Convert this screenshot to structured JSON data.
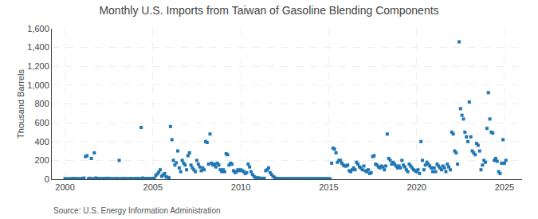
{
  "chart_data": {
    "type": "scatter",
    "title": "Monthly U.S. Imports from Taiwan of Gasoline Blending Components",
    "ylabel": "Thousand Barrels",
    "annotations": [
      "Source: U.S. Energy Information Administration"
    ],
    "marker": "square",
    "grid": true,
    "xlim": [
      1999.25,
      2026.0
    ],
    "xticks": [
      2000,
      2005,
      2010,
      2015,
      2020,
      2025
    ],
    "ylim": [
      0,
      1600
    ],
    "yticks": [
      0,
      200,
      400,
      600,
      800,
      {
        "value": 1000,
        "label": "1,000"
      },
      {
        "value": 1200,
        "label": "1,200"
      },
      {
        "value": 1400,
        "label": "1,400"
      },
      {
        "value": 1600,
        "label": "1,600"
      }
    ],
    "x": [
      2000.0,
      2000.083,
      2000.167,
      2000.25,
      2000.333,
      2000.417,
      2000.5,
      2000.583,
      2000.667,
      2000.75,
      2000.833,
      2000.917,
      2001.0,
      2001.083,
      2001.167,
      2001.25,
      2001.333,
      2001.417,
      2001.5,
      2001.583,
      2001.667,
      2001.75,
      2001.833,
      2001.917,
      2002.0,
      2002.083,
      2002.167,
      2002.25,
      2002.333,
      2002.417,
      2002.5,
      2002.583,
      2002.667,
      2002.75,
      2002.833,
      2002.917,
      2003.0,
      2003.083,
      2003.167,
      2003.25,
      2003.333,
      2003.417,
      2003.5,
      2003.583,
      2003.667,
      2003.75,
      2003.833,
      2003.917,
      2004.0,
      2004.083,
      2004.167,
      2004.25,
      2004.333,
      2004.417,
      2004.5,
      2004.583,
      2004.667,
      2004.75,
      2004.833,
      2004.917,
      2005.0,
      2005.083,
      2005.167,
      2005.25,
      2005.333,
      2005.417,
      2005.5,
      2005.583,
      2005.667,
      2005.75,
      2005.833,
      2005.917,
      2006.0,
      2006.083,
      2006.167,
      2006.25,
      2006.333,
      2006.417,
      2006.5,
      2006.583,
      2006.667,
      2006.75,
      2006.833,
      2006.917,
      2007.0,
      2007.083,
      2007.167,
      2007.25,
      2007.333,
      2007.417,
      2007.5,
      2007.583,
      2007.667,
      2007.75,
      2007.833,
      2007.917,
      2008.0,
      2008.083,
      2008.167,
      2008.25,
      2008.333,
      2008.417,
      2008.5,
      2008.583,
      2008.667,
      2008.75,
      2008.833,
      2008.917,
      2009.0,
      2009.083,
      2009.167,
      2009.25,
      2009.333,
      2009.417,
      2009.5,
      2009.583,
      2009.667,
      2009.75,
      2009.833,
      2009.917,
      2010.0,
      2010.083,
      2010.167,
      2010.25,
      2010.333,
      2010.417,
      2010.5,
      2010.583,
      2010.667,
      2010.75,
      2010.833,
      2010.917,
      2011.0,
      2011.083,
      2011.167,
      2011.25,
      2011.333,
      2011.417,
      2011.5,
      2011.583,
      2011.667,
      2011.75,
      2011.833,
      2011.917,
      2012.0,
      2012.083,
      2012.167,
      2012.25,
      2012.333,
      2012.417,
      2012.5,
      2012.583,
      2012.667,
      2012.75,
      2012.833,
      2012.917,
      2013.0,
      2013.083,
      2013.167,
      2013.25,
      2013.333,
      2013.417,
      2013.5,
      2013.583,
      2013.667,
      2013.75,
      2013.833,
      2013.917,
      2014.0,
      2014.083,
      2014.167,
      2014.25,
      2014.333,
      2014.417,
      2014.5,
      2014.583,
      2014.667,
      2014.75,
      2014.833,
      2014.917,
      2015.0,
      2015.083,
      2015.167,
      2015.25,
      2015.333,
      2015.417,
      2015.5,
      2015.583,
      2015.667,
      2015.75,
      2015.833,
      2015.917,
      2016.0,
      2016.083,
      2016.167,
      2016.25,
      2016.333,
      2016.417,
      2016.5,
      2016.583,
      2016.667,
      2016.75,
      2016.833,
      2016.917,
      2017.0,
      2017.083,
      2017.167,
      2017.25,
      2017.333,
      2017.417,
      2017.5,
      2017.583,
      2017.667,
      2017.75,
      2017.833,
      2017.917,
      2018.0,
      2018.083,
      2018.167,
      2018.25,
      2018.333,
      2018.417,
      2018.5,
      2018.583,
      2018.667,
      2018.75,
      2018.833,
      2018.917,
      2019.0,
      2019.083,
      2019.167,
      2019.25,
      2019.333,
      2019.417,
      2019.5,
      2019.583,
      2019.667,
      2019.75,
      2019.833,
      2019.917,
      2020.0,
      2020.083,
      2020.167,
      2020.25,
      2020.333,
      2020.417,
      2020.5,
      2020.583,
      2020.667,
      2020.75,
      2020.833,
      2020.917,
      2021.0,
      2021.083,
      2021.167,
      2021.25,
      2021.333,
      2021.417,
      2021.5,
      2021.583,
      2021.667,
      2021.75,
      2021.833,
      2021.917,
      2022.0,
      2022.083,
      2022.167,
      2022.25,
      2022.333,
      2022.417,
      2022.5,
      2022.583,
      2022.667,
      2022.75,
      2022.833,
      2022.917,
      2023.0,
      2023.083,
      2023.167,
      2023.25,
      2023.333,
      2023.417,
      2023.5,
      2023.583,
      2023.667,
      2023.75,
      2023.833,
      2023.917,
      2024.0,
      2024.083,
      2024.167,
      2024.25,
      2024.333,
      2024.417,
      2024.5,
      2024.583,
      2024.667,
      2024.75,
      2024.833,
      2024.917,
      2025.0,
      2025.083
    ],
    "values": [
      5,
      3,
      4,
      2,
      5,
      3,
      8,
      4,
      6,
      3,
      5,
      4,
      8,
      12,
      240,
      250,
      6,
      10,
      220,
      6,
      280,
      12,
      6,
      8,
      4,
      5,
      6,
      8,
      5,
      10,
      8,
      6,
      5,
      4,
      6,
      5,
      8,
      200,
      6,
      5,
      8,
      6,
      5,
      4,
      6,
      8,
      5,
      6,
      5,
      6,
      8,
      6,
      550,
      12,
      8,
      6,
      5,
      8,
      6,
      5,
      8,
      10,
      40,
      55,
      75,
      100,
      30,
      45,
      60,
      25,
      20,
      15,
      560,
      420,
      200,
      150,
      175,
      300,
      120,
      80,
      200,
      170,
      150,
      100,
      250,
      280,
      150,
      120,
      100,
      80,
      200,
      160,
      130,
      90,
      120,
      100,
      400,
      390,
      160,
      480,
      170,
      150,
      160,
      130,
      170,
      150,
      100,
      80,
      100,
      80,
      270,
      260,
      150,
      170,
      160,
      90,
      70,
      80,
      100,
      90,
      100,
      90,
      80,
      60,
      70,
      160,
      130,
      80,
      50,
      30,
      20,
      10,
      15,
      8,
      10,
      5,
      10,
      90,
      100,
      120,
      70,
      50,
      30,
      20,
      5,
      8,
      6,
      5,
      4,
      6,
      5,
      4,
      6,
      5,
      4,
      5,
      4,
      6,
      5,
      4,
      6,
      5,
      4,
      6,
      5,
      4,
      6,
      5,
      6,
      5,
      4,
      6,
      5,
      4,
      6,
      5,
      4,
      6,
      5,
      4,
      5,
      3,
      170,
      330,
      320,
      280,
      180,
      200,
      200,
      170,
      150,
      140,
      140,
      150,
      90,
      80,
      100,
      120,
      100,
      180,
      160,
      130,
      120,
      100,
      140,
      90,
      80,
      100,
      60,
      70,
      240,
      250,
      160,
      150,
      130,
      120,
      140,
      130,
      100,
      140,
      480,
      220,
      200,
      160,
      180,
      160,
      140,
      120,
      140,
      120,
      200,
      150,
      130,
      100,
      80,
      160,
      140,
      120,
      100,
      90,
      80,
      100,
      60,
      400,
      200,
      100,
      150,
      180,
      160,
      140,
      120,
      80,
      120,
      80,
      160,
      140,
      120,
      100,
      140,
      120,
      80,
      160,
      130,
      100,
      500,
      480,
      300,
      280,
      160,
      1460,
      750,
      680,
      640,
      500,
      450,
      400,
      820,
      450,
      300,
      280,
      260,
      380,
      360,
      300,
      100,
      150,
      200,
      180,
      540,
      920,
      640,
      500,
      490,
      200,
      220,
      190,
      80,
      60,
      170,
      420,
      170,
      200
    ]
  }
}
